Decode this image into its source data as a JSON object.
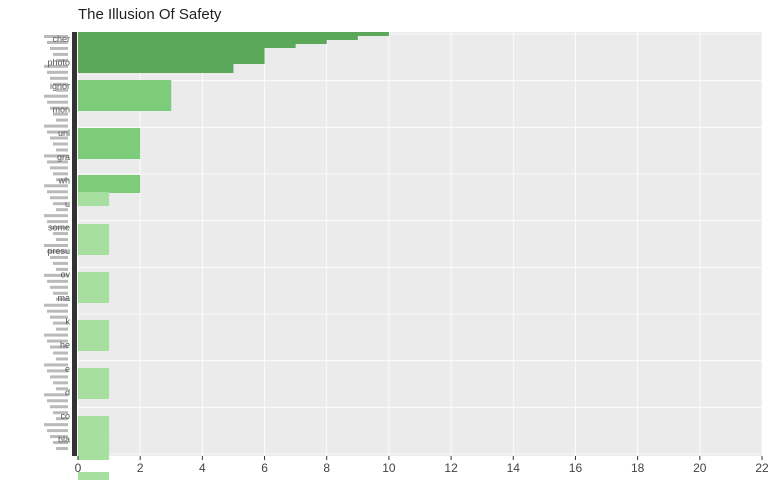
{
  "chart_data": {
    "type": "bar",
    "orientation": "horizontal",
    "title": "The Illusion Of Safety",
    "xlabel": "",
    "ylabel": "",
    "xlim": [
      0,
      22
    ],
    "x_ticks": [
      "0",
      "2",
      "4",
      "6",
      "8",
      "10",
      "12",
      "14",
      "16",
      "18",
      "20",
      "22"
    ],
    "grid": true,
    "legend": "none",
    "note": "Category labels on the y-axis are heavily overlapping; only a few are partially legible.",
    "visible_axis_labels": [
      "cher",
      "photo",
      "ignor",
      "mon",
      "unl",
      "gra",
      "wh",
      "u",
      "some",
      "presu",
      "ov",
      "ma",
      "k",
      "he",
      "e",
      "d",
      "co",
      "bla"
    ],
    "categories": [
      "cat-1",
      "cat-2",
      "cat-3",
      "cat-4",
      "cat-5",
      "cat-6",
      "cat-7",
      "cat-8",
      "cat-9",
      "cat-10",
      "cat-11",
      "cat-12",
      "cat-13",
      "cat-14",
      "cat-15",
      "cat-16",
      "cat-17"
    ],
    "values": [
      10,
      9,
      8,
      7,
      6,
      5,
      3,
      2,
      2,
      1,
      1,
      1,
      1,
      1,
      1,
      1,
      1
    ],
    "colors": {
      "high": "#5ba85b",
      "mid": "#7ccc7c",
      "low": "#a6dfa0",
      "panel": "#ebebeb",
      "grid": "#ffffff",
      "axis_band": "#333333"
    }
  }
}
